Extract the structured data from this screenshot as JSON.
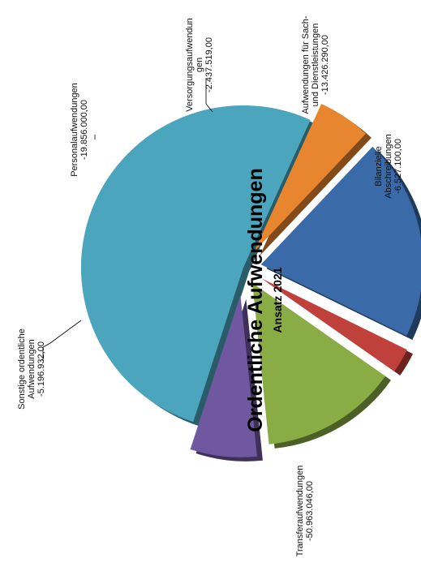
{
  "chart_data": {
    "type": "pie",
    "title": "Ordentliche Aufwendungen",
    "subtitle": "Ansatz 2021",
    "slices": [
      {
        "label": [
          "Transferaufwendungen"
        ],
        "value_text": "-50.963.046,00",
        "value": 50963046.0,
        "color": "#4aa5bd"
      },
      {
        "label": [
          "Sonstige ordentliche",
          "Aufwendungen"
        ],
        "value_text": "-5.196.932,00",
        "value": 5196932.0,
        "color": "#e8862f"
      },
      {
        "label": [
          "Personalaufwendungen"
        ],
        "value_text": "-19.856.000,00",
        "value": 19856000.0,
        "color": "#3b6aa8"
      },
      {
        "label": [
          "Versorgungsaufwendun",
          "gen"
        ],
        "value_text": "-2.437.519,00",
        "value": 2437519.0,
        "color": "#c0403c"
      },
      {
        "label": [
          "Aufwendungen für Sach-",
          "und Dienstleistungen"
        ],
        "value_text": "-13.426.290,00",
        "value": 13426290.0,
        "color": "#8aac45"
      },
      {
        "label": [
          "Bilanzielle",
          "Abschreibungen"
        ],
        "value_text": "-6.527.100,00",
        "value": 6527100.0,
        "color": "#7058a0"
      }
    ]
  }
}
